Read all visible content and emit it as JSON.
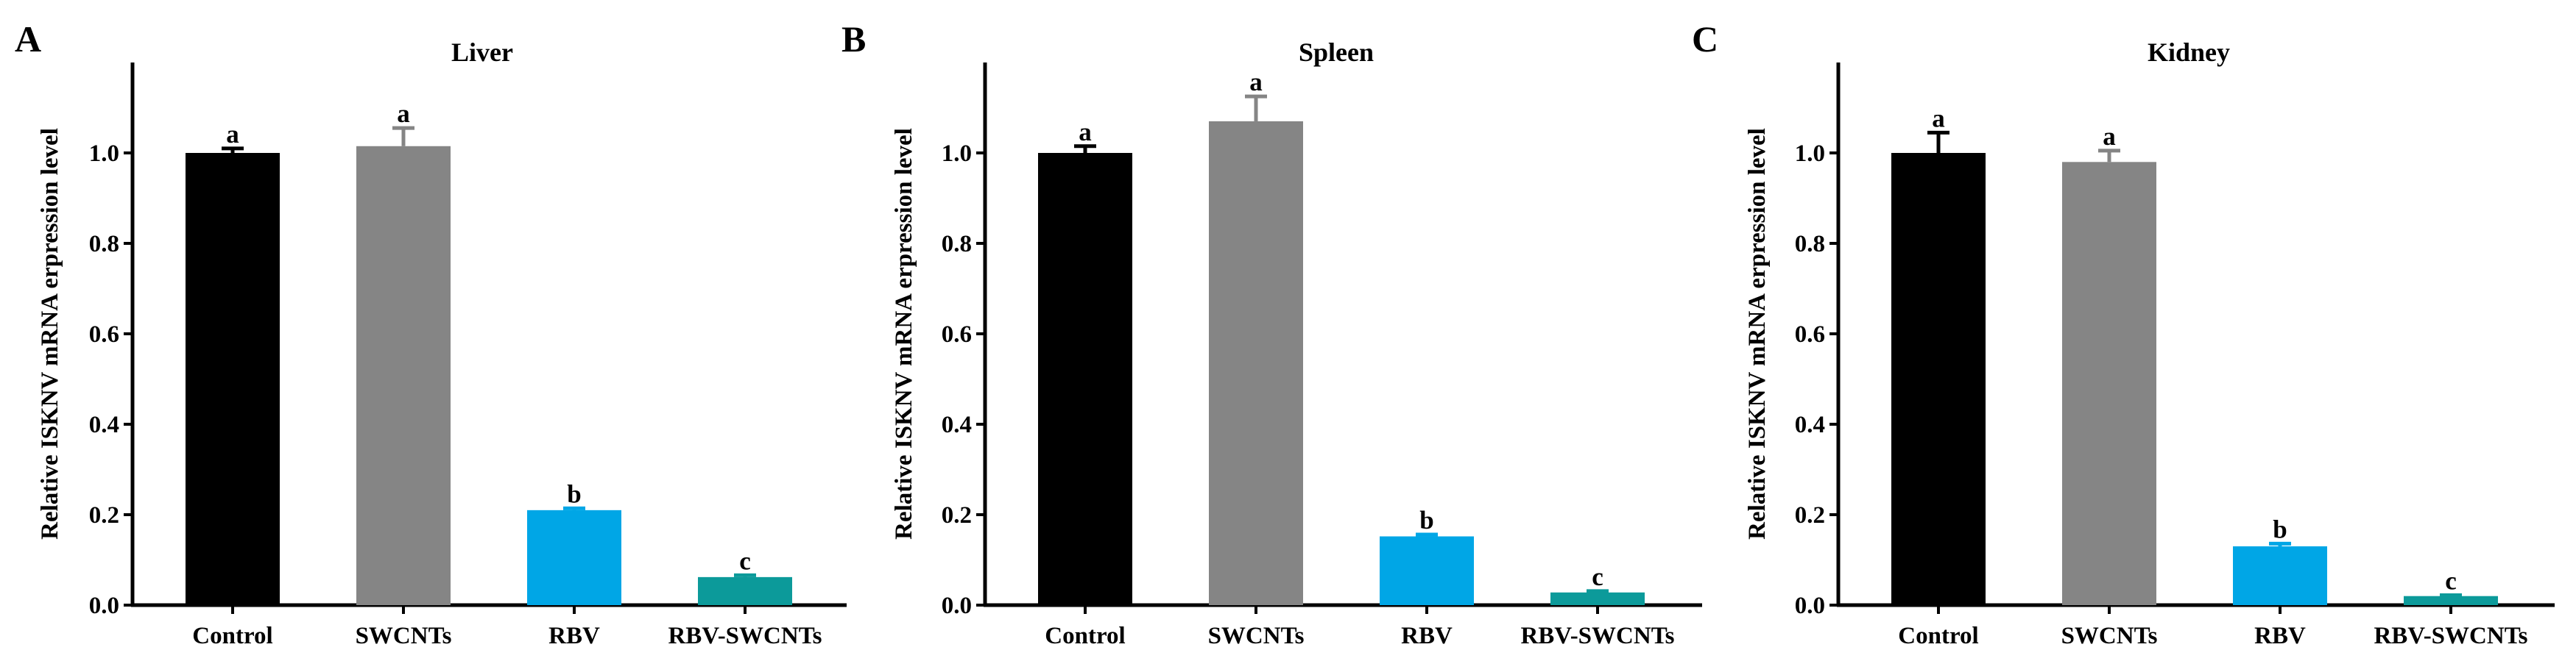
{
  "chart_data": [
    {
      "type": "bar",
      "panel": "A",
      "title": "Liver",
      "ylabel": "Relative ISKNV mRNA erpression level",
      "ylim": [
        0,
        1.2
      ],
      "yticks": [
        "0.0",
        "0.2",
        "0.4",
        "0.6",
        "0.8",
        "1.0"
      ],
      "categories": [
        "Control",
        "SWCNTs",
        "RBV",
        "RBV-SWCNTs"
      ],
      "values": [
        1.0,
        1.015,
        0.21,
        0.062
      ],
      "errors": [
        0.01,
        0.04,
        0.004,
        0.004
      ],
      "significance": [
        "a",
        "a",
        "b",
        "c"
      ],
      "colors": [
        "#000000",
        "#858585",
        "#00a6e6",
        "#0c9a9a"
      ]
    },
    {
      "type": "bar",
      "panel": "B",
      "title": "Spleen",
      "ylabel": "Relative ISKNV mRNA erpression level",
      "ylim": [
        0,
        1.2
      ],
      "yticks": [
        "0.0",
        "0.2",
        "0.4",
        "0.6",
        "0.8",
        "1.0"
      ],
      "categories": [
        "Control",
        "SWCNTs",
        "RBV",
        "RBV-SWCNTs"
      ],
      "values": [
        1.0,
        1.07,
        0.152,
        0.028
      ],
      "errors": [
        0.015,
        0.055,
        0.004,
        0.003
      ],
      "significance": [
        "a",
        "a",
        "b",
        "c"
      ],
      "colors": [
        "#000000",
        "#858585",
        "#00a6e6",
        "#0c9a9a"
      ]
    },
    {
      "type": "bar",
      "panel": "C",
      "title": "Kidney",
      "ylabel": "Relative ISKNV mRNA erpression level",
      "ylim": [
        0,
        1.2
      ],
      "yticks": [
        "0.0",
        "0.2",
        "0.4",
        "0.6",
        "0.8",
        "1.0"
      ],
      "categories": [
        "Control",
        "SWCNTs",
        "RBV",
        "RBV-SWCNTs"
      ],
      "values": [
        1.0,
        0.98,
        0.13,
        0.02
      ],
      "errors": [
        0.045,
        0.025,
        0.006,
        0.002
      ],
      "significance": [
        "a",
        "a",
        "b",
        "c"
      ],
      "colors": [
        "#000000",
        "#858585",
        "#00a6e6",
        "#0c9a9a"
      ]
    }
  ]
}
